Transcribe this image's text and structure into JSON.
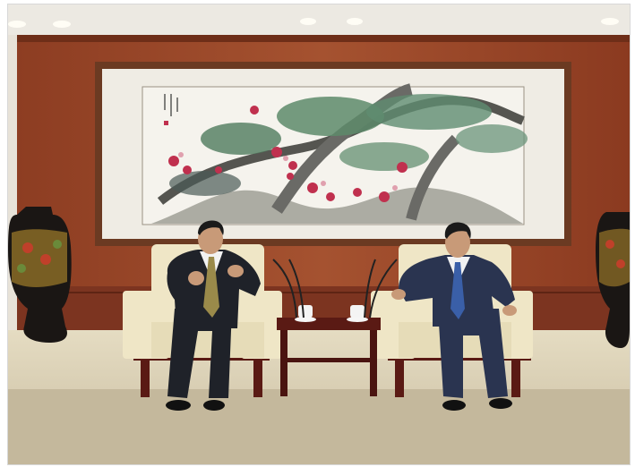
{
  "scene": {
    "colors": {
      "ceiling": "#e9e6df",
      "ceiling_light": "#fffdf5",
      "wall_wood": "#9a4a2a",
      "wall_wood_dark": "#7a3520",
      "frame_outer": "#6b3a22",
      "frame_inner": "#efece4",
      "painting_bg": "#f4f2ec",
      "pine_green": "#5d8a6a",
      "pine_trunk": "#6a6a66",
      "blossom": "#c0304e",
      "floor": "#d2c7ad",
      "floor_mat": "#bdb39d",
      "chair_cushion": "#efe6c6",
      "chair_wood": "#5a1a14",
      "table_wood": "#5a1a14",
      "suit_dark": "#1f2229",
      "suit_navy": "#2a3450",
      "shirt_white": "#f2f2f2",
      "tie_gold": "#9a8a4a",
      "tie_blue": "#3a5fa8",
      "vase_black": "#1a1614",
      "vase_gold": "#c79a30",
      "skin": "#c89a78",
      "hair": "#1a1a1a"
    },
    "icons": [
      "ceiling-light-icon",
      "microphone-icon",
      "teacup-icon",
      "vase-icon"
    ]
  }
}
